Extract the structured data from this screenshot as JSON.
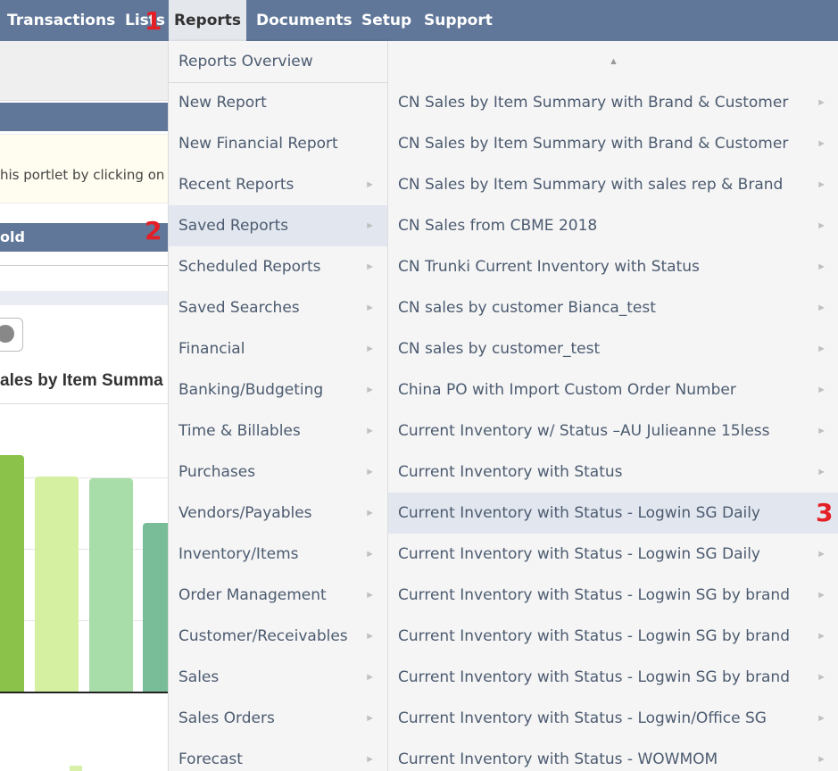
{
  "nav": {
    "items": [
      {
        "label": "Transactions",
        "active": false
      },
      {
        "label": "Lists",
        "active": false
      },
      {
        "label": "Reports",
        "active": true
      },
      {
        "label": "Documents",
        "active": false
      },
      {
        "label": "Setup",
        "active": false
      },
      {
        "label": "Support",
        "active": false
      }
    ]
  },
  "markers": {
    "one": "1",
    "two": "2",
    "three": "3"
  },
  "background": {
    "portlet_hint": "his portlet by clicking on t",
    "sold_header": "old",
    "chart_title": "ales by Item Summa"
  },
  "reports_menu": {
    "items": [
      {
        "label": "Reports Overview",
        "has_submenu": false
      },
      {
        "label": "New Report",
        "has_submenu": false
      },
      {
        "label": "New Financial Report",
        "has_submenu": false
      },
      {
        "label": "Recent Reports",
        "has_submenu": true
      },
      {
        "label": "Saved Reports",
        "has_submenu": true,
        "highlighted": true
      },
      {
        "label": "Scheduled Reports",
        "has_submenu": true
      },
      {
        "label": "Saved Searches",
        "has_submenu": true
      },
      {
        "label": "Financial",
        "has_submenu": true
      },
      {
        "label": "Banking/Budgeting",
        "has_submenu": true
      },
      {
        "label": "Time & Billables",
        "has_submenu": true
      },
      {
        "label": "Purchases",
        "has_submenu": true
      },
      {
        "label": "Vendors/Payables",
        "has_submenu": true
      },
      {
        "label": "Inventory/Items",
        "has_submenu": true
      },
      {
        "label": "Order Management",
        "has_submenu": true
      },
      {
        "label": "Customer/Receivables",
        "has_submenu": true
      },
      {
        "label": "Sales",
        "has_submenu": true
      },
      {
        "label": "Sales Orders",
        "has_submenu": true
      },
      {
        "label": "Forecast",
        "has_submenu": true
      }
    ],
    "arrow_glyph": "►"
  },
  "saved_reports_menu": {
    "scroll_up_glyph": "▲",
    "items": [
      {
        "label": "CN Sales by Item Summary with Brand & Customer",
        "has_submenu": true
      },
      {
        "label": "CN Sales by Item Summary with Brand & Customer",
        "has_submenu": true
      },
      {
        "label": "CN Sales by Item Summary with sales rep & Brand",
        "has_submenu": true
      },
      {
        "label": "CN Sales from CBME 2018",
        "has_submenu": true
      },
      {
        "label": "CN Trunki Current Inventory with Status",
        "has_submenu": true
      },
      {
        "label": "CN sales by customer Bianca_test",
        "has_submenu": true
      },
      {
        "label": "CN sales by customer_test",
        "has_submenu": true
      },
      {
        "label": "China PO with Import Custom Order Number",
        "has_submenu": true
      },
      {
        "label": "Current Inventory w/ Status –AU Julieanne 15less",
        "has_submenu": true
      },
      {
        "label": "Current Inventory with Status",
        "has_submenu": true
      },
      {
        "label": "Current Inventory with Status - Logwin SG Daily",
        "has_submenu": false,
        "highlighted": true
      },
      {
        "label": "Current Inventory with Status - Logwin SG Daily",
        "has_submenu": true
      },
      {
        "label": "Current Inventory with Status - Logwin SG by brand",
        "has_submenu": true
      },
      {
        "label": "Current Inventory with Status - Logwin SG by brand",
        "has_submenu": true
      },
      {
        "label": "Current Inventory with Status - Logwin SG by brand",
        "has_submenu": true
      },
      {
        "label": "Current Inventory with Status - Logwin/Office SG",
        "has_submenu": true
      },
      {
        "label": "Current Inventory with Status - WOWMOM",
        "has_submenu": true
      }
    ]
  },
  "colors": {
    "nav_bg": "#607799",
    "menu_bg": "#f5f5f5",
    "highlight_bg": "#e2e7ef",
    "marker_red": "#e41f25",
    "bars": [
      "#8bc34a",
      "#d4f0a0",
      "#a8dca8",
      "#79bc98"
    ]
  }
}
